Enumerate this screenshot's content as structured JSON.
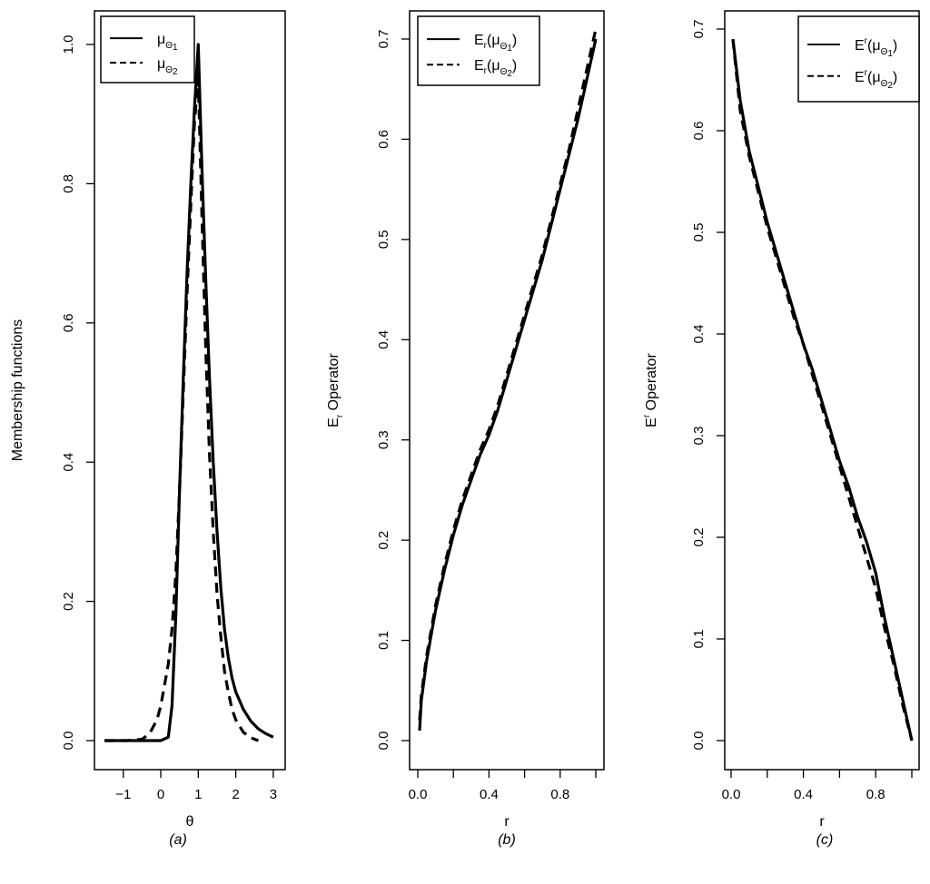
{
  "chart_data": [
    {
      "type": "line",
      "panel": "a",
      "caption": "(a)",
      "xlabel": "θ",
      "ylabel": "Membership functions",
      "xlim": [
        -1.6,
        3.1
      ],
      "ylim": [
        0,
        1.0
      ],
      "xticks": [
        -1,
        0,
        1,
        2,
        3
      ],
      "xtick_labels": [
        "−1",
        "0",
        "1",
        "2",
        "3"
      ],
      "yticks": [
        0,
        0.2,
        0.4,
        0.6,
        0.8,
        1.0
      ],
      "ytick_labels": [
        "0.0",
        "0.2",
        "0.4",
        "0.6",
        "0.8",
        "1.0"
      ],
      "grid": false,
      "legend": {
        "placement": "top-left",
        "entries": [
          {
            "base": "μ",
            "tilde": "Θ",
            "sub": "1",
            "style": "solid"
          },
          {
            "base": "μ",
            "tilde": "Θ",
            "sub": "2",
            "style": "dashed"
          }
        ]
      },
      "series": [
        {
          "style": "solid",
          "x": [
            -1.5,
            -0.5,
            0.0,
            0.2,
            0.3,
            0.4,
            0.5,
            0.6,
            0.7,
            0.8,
            0.9,
            1.0,
            1.1,
            1.2,
            1.3,
            1.4,
            1.5,
            1.6,
            1.7,
            1.8,
            1.9,
            2.0,
            2.2,
            2.4,
            2.6,
            2.8,
            3.0
          ],
          "y": [
            0.0,
            0.0,
            0.0,
            0.005,
            0.05,
            0.18,
            0.36,
            0.52,
            0.67,
            0.8,
            0.91,
            1.0,
            0.82,
            0.66,
            0.52,
            0.4,
            0.3,
            0.22,
            0.16,
            0.12,
            0.09,
            0.07,
            0.045,
            0.028,
            0.017,
            0.01,
            0.005
          ]
        },
        {
          "style": "dashed",
          "x": [
            -1.5,
            -0.9,
            -0.5,
            -0.3,
            -0.1,
            0.0,
            0.1,
            0.2,
            0.3,
            0.4,
            0.5,
            0.6,
            0.7,
            0.8,
            0.9,
            1.0,
            1.1,
            1.2,
            1.3,
            1.4,
            1.5,
            1.6,
            1.7,
            1.8,
            1.9,
            2.0,
            2.2,
            2.4,
            2.6
          ],
          "y": [
            0.0,
            0.0,
            0.002,
            0.01,
            0.03,
            0.05,
            0.08,
            0.11,
            0.16,
            0.24,
            0.36,
            0.5,
            0.64,
            0.77,
            0.89,
            0.95,
            0.75,
            0.56,
            0.41,
            0.3,
            0.21,
            0.15,
            0.1,
            0.07,
            0.045,
            0.03,
            0.012,
            0.004,
            0.0
          ]
        }
      ]
    },
    {
      "type": "line",
      "panel": "b",
      "caption": "(b)",
      "xlabel": "r",
      "ylabel": {
        "base": "E",
        "sub": "r",
        "rest": "Operator"
      },
      "xlim": [
        0,
        1
      ],
      "ylim": [
        0,
        0.7
      ],
      "xticks": [
        0.0,
        0.2,
        0.4,
        0.6,
        0.8,
        1.0
      ],
      "xtick_labels": [
        "0.0",
        "",
        "0.4",
        "",
        "0.8",
        ""
      ],
      "yticks": [
        0,
        0.1,
        0.2,
        0.3,
        0.4,
        0.5,
        0.6,
        0.7
      ],
      "ytick_labels": [
        "0.0",
        "0.1",
        "0.2",
        "0.3",
        "0.4",
        "0.5",
        "0.6",
        "0.7"
      ],
      "grid": false,
      "legend": {
        "placement": "top-left",
        "entries": [
          {
            "base": "E",
            "sub": "r",
            "inner": "μ",
            "tilde": "Θ",
            "isub": "1",
            "style": "solid"
          },
          {
            "base": "E",
            "sub": "r",
            "inner": "μ",
            "tilde": "Θ",
            "isub": "2",
            "style": "dashed"
          }
        ]
      },
      "series": [
        {
          "style": "solid",
          "x": [
            0.01,
            0.02,
            0.05,
            0.1,
            0.15,
            0.2,
            0.25,
            0.3,
            0.35,
            0.4,
            0.45,
            0.5,
            0.55,
            0.6,
            0.65,
            0.7,
            0.75,
            0.8,
            0.85,
            0.9,
            0.95,
            1.0
          ],
          "y": [
            0.01,
            0.04,
            0.08,
            0.13,
            0.17,
            0.205,
            0.235,
            0.26,
            0.285,
            0.305,
            0.33,
            0.36,
            0.39,
            0.42,
            0.45,
            0.48,
            0.515,
            0.55,
            0.585,
            0.62,
            0.66,
            0.7
          ]
        },
        {
          "style": "dashed",
          "x": [
            0.01,
            0.02,
            0.05,
            0.1,
            0.15,
            0.2,
            0.25,
            0.3,
            0.35,
            0.4,
            0.45,
            0.5,
            0.55,
            0.6,
            0.65,
            0.7,
            0.75,
            0.8,
            0.85,
            0.9,
            0.95,
            1.0
          ],
          "y": [
            0.02,
            0.045,
            0.085,
            0.135,
            0.175,
            0.21,
            0.24,
            0.265,
            0.29,
            0.31,
            0.335,
            0.365,
            0.395,
            0.425,
            0.455,
            0.485,
            0.52,
            0.555,
            0.59,
            0.63,
            0.67,
            0.71
          ]
        }
      ]
    },
    {
      "type": "line",
      "panel": "c",
      "caption": "(c)",
      "xlabel": "r",
      "ylabel": {
        "base": "E",
        "sup": "r",
        "rest": "Operator"
      },
      "xlim": [
        0,
        1
      ],
      "ylim": [
        0,
        0.7
      ],
      "xticks": [
        0.0,
        0.2,
        0.4,
        0.6,
        0.8,
        1.0
      ],
      "xtick_labels": [
        "0.0",
        "",
        "0.4",
        "",
        "0.8",
        ""
      ],
      "yticks": [
        0,
        0.1,
        0.2,
        0.3,
        0.4,
        0.5,
        0.6,
        0.7
      ],
      "ytick_labels": [
        "0.0",
        "0.1",
        "0.2",
        "0.3",
        "0.4",
        "0.5",
        "0.6",
        "0.7"
      ],
      "grid": false,
      "legend": {
        "placement": "top-right",
        "entries": [
          {
            "base": "E",
            "sup": "r",
            "inner": "μ",
            "tilde": "Θ",
            "isub": "1",
            "style": "solid"
          },
          {
            "base": "E",
            "sup": "r",
            "inner": "μ",
            "tilde": "Θ",
            "isub": "2",
            "style": "dashed"
          }
        ]
      },
      "series": [
        {
          "style": "solid",
          "x": [
            0.01,
            0.05,
            0.1,
            0.15,
            0.2,
            0.25,
            0.3,
            0.35,
            0.4,
            0.45,
            0.5,
            0.55,
            0.6,
            0.65,
            0.7,
            0.75,
            0.8,
            0.85,
            0.9,
            0.95,
            1.0
          ],
          "y": [
            0.69,
            0.63,
            0.58,
            0.545,
            0.51,
            0.48,
            0.45,
            0.42,
            0.39,
            0.365,
            0.335,
            0.305,
            0.275,
            0.25,
            0.22,
            0.195,
            0.165,
            0.12,
            0.08,
            0.04,
            0.0
          ]
        },
        {
          "style": "dashed",
          "x": [
            0.01,
            0.05,
            0.1,
            0.15,
            0.2,
            0.25,
            0.3,
            0.35,
            0.4,
            0.45,
            0.5,
            0.55,
            0.6,
            0.65,
            0.7,
            0.75,
            0.8,
            0.85,
            0.9,
            0.95,
            1.0
          ],
          "y": [
            0.69,
            0.62,
            0.575,
            0.54,
            0.505,
            0.475,
            0.445,
            0.415,
            0.39,
            0.36,
            0.33,
            0.3,
            0.27,
            0.24,
            0.21,
            0.18,
            0.15,
            0.11,
            0.075,
            0.035,
            0.0
          ]
        }
      ]
    }
  ]
}
